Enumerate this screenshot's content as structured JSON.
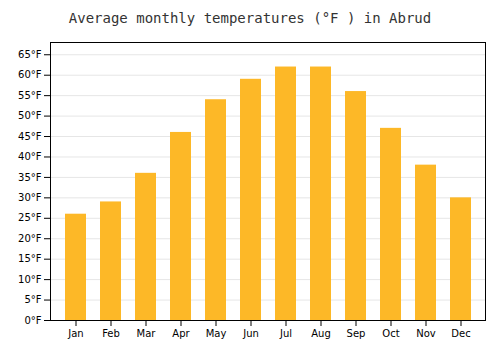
{
  "chart_data": {
    "type": "bar",
    "title": "Average monthly temperatures (°F ) in Abrud",
    "categories": [
      "Jan",
      "Feb",
      "Mar",
      "Apr",
      "May",
      "Jun",
      "Jul",
      "Aug",
      "Sep",
      "Oct",
      "Nov",
      "Dec"
    ],
    "values": [
      26,
      29,
      36,
      46,
      54,
      59,
      62,
      62,
      56,
      47,
      38,
      30
    ],
    "color": "#FDB827",
    "ylim": [
      0,
      68
    ],
    "yticks": [
      {
        "value": 0,
        "label": "0°F"
      },
      {
        "value": 5,
        "label": "5°F"
      },
      {
        "value": 10,
        "label": "10°F"
      },
      {
        "value": 15,
        "label": "15°F"
      },
      {
        "value": 20,
        "label": "20°F"
      },
      {
        "value": 25,
        "label": "25°F"
      },
      {
        "value": 30,
        "label": "30°F"
      },
      {
        "value": 35,
        "label": "35°F"
      },
      {
        "value": 40,
        "label": "40°F"
      },
      {
        "value": 45,
        "label": "45°F"
      },
      {
        "value": 50,
        "label": "50°F"
      },
      {
        "value": 55,
        "label": "55°F"
      },
      {
        "value": 60,
        "label": "60°F"
      },
      {
        "value": 65,
        "label": "65°F"
      }
    ],
    "grid": true
  }
}
